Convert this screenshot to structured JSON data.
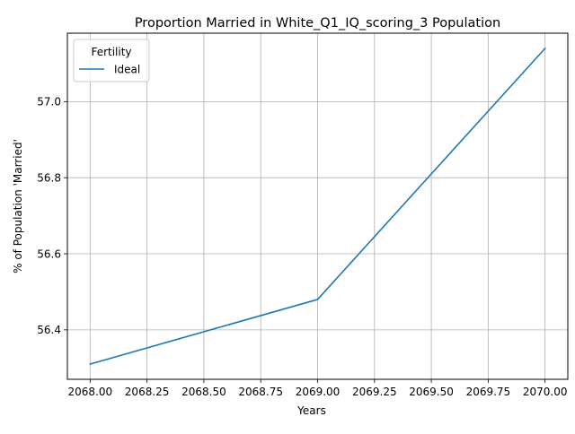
{
  "chart_data": {
    "type": "line",
    "title": "Proportion Married in White_Q1_IQ_scoring_3 Population",
    "xlabel": "Years",
    "ylabel": "% of Population 'Married'",
    "xlim": [
      2067.9,
      2070.1
    ],
    "ylim": [
      56.27,
      57.18
    ],
    "x_ticks": [
      2068.0,
      2068.25,
      2068.5,
      2068.75,
      2069.0,
      2069.25,
      2069.5,
      2069.75,
      2070.0
    ],
    "x_tick_labels": [
      "2068.00",
      "2068.25",
      "2068.50",
      "2068.75",
      "2069.00",
      "2069.25",
      "2069.50",
      "2069.75",
      "2070.00"
    ],
    "y_ticks": [
      56.4,
      56.6,
      56.8,
      57.0
    ],
    "y_tick_labels": [
      "56.4",
      "56.6",
      "56.8",
      "57.0"
    ],
    "grid": true,
    "legend": {
      "title": "Fertility",
      "placement": "top-left"
    },
    "series": [
      {
        "name": "Ideal",
        "color": "#1f77b4",
        "x": [
          2068,
          2069,
          2070
        ],
        "y": [
          56.31,
          56.48,
          57.14
        ]
      }
    ]
  }
}
